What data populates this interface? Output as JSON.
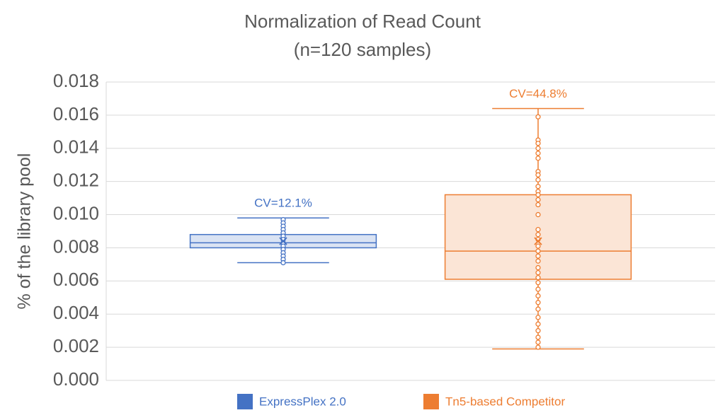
{
  "chart_data": {
    "type": "box",
    "title": "Normalization of Read Count",
    "subtitle": "(n=120 samples)",
    "y_label": "% of the library pool",
    "ylim": [
      0,
      0.018
    ],
    "yticks": [
      {
        "value": 0,
        "label": "0.000"
      },
      0.002,
      0.004,
      0.006,
      0.008,
      {
        "value": 0.01,
        "label": "0.010"
      },
      0.012,
      0.014,
      0.016,
      0.018
    ],
    "grid": true,
    "legend": "bottom",
    "series": [
      {
        "name": "ExpressPlex 2.0",
        "color": "#4472c4",
        "fill": "#dae3f3",
        "min": 0.0071,
        "q1": 0.008,
        "median": 0.0083,
        "q3": 0.0088,
        "max": 0.0098,
        "mean": 0.0084,
        "points": [
          0.0097,
          0.0095,
          0.0093,
          0.0091,
          0.0089,
          0.0087,
          0.0085,
          0.0083,
          0.0081,
          0.0079,
          0.0077,
          0.0075,
          0.0073,
          0.0071
        ],
        "annotation": "CV=12.1%"
      },
      {
        "name": "Tn5-based Competitor",
        "color": "#ed7d31",
        "fill": "#fbe5d6",
        "min": 0.0019,
        "q1": 0.0061,
        "median": 0.0078,
        "q3": 0.0112,
        "max": 0.0164,
        "mean": 0.0084,
        "points": [
          0.0159,
          0.0145,
          0.0143,
          0.014,
          0.0137,
          0.0134,
          0.0126,
          0.0124,
          0.0121,
          0.0117,
          0.0114,
          0.0112,
          0.0109,
          0.0106,
          0.01,
          0.0091,
          0.0088,
          0.0085,
          0.0081,
          0.0078,
          0.0075,
          0.0072,
          0.0068,
          0.0065,
          0.0062,
          0.0059,
          0.0055,
          0.0051,
          0.0047,
          0.0043,
          0.0038,
          0.0034,
          0.003,
          0.0026,
          0.0023,
          0.002
        ],
        "annotation": "CV=44.8%"
      }
    ]
  }
}
